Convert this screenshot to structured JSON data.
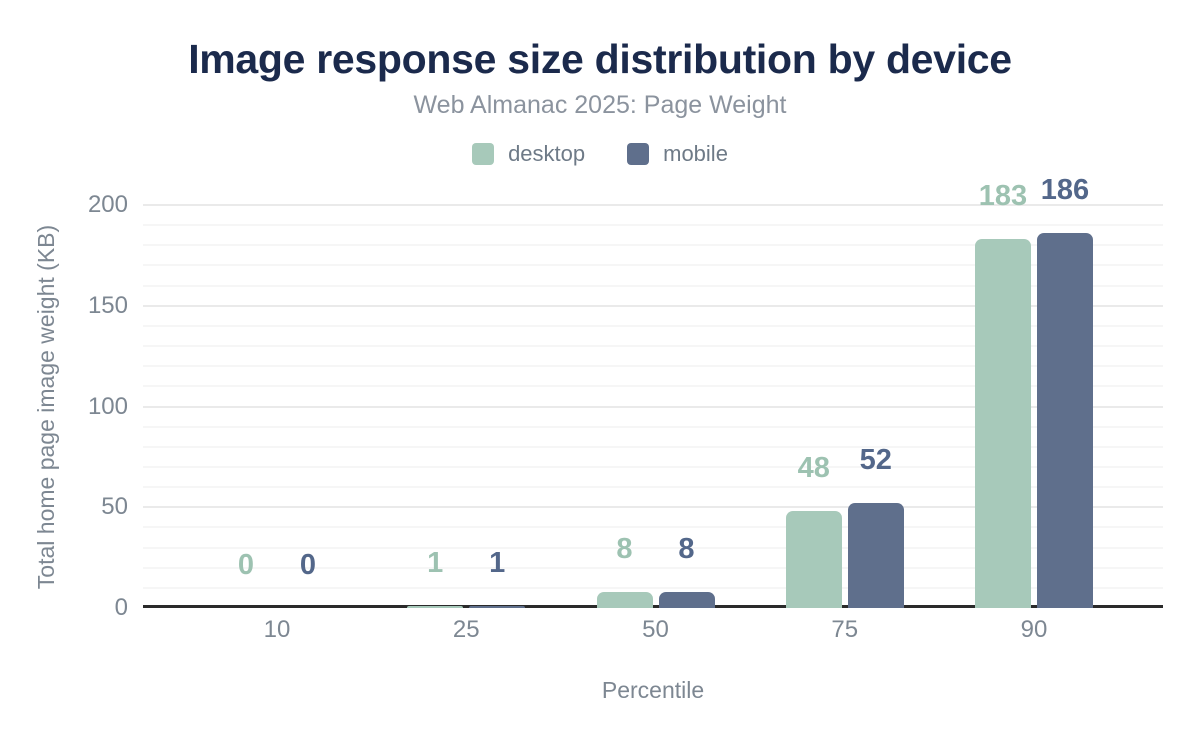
{
  "chart_data": {
    "type": "bar",
    "title": "Image response size distribution by device",
    "subtitle": "Web Almanac 2025: Page Weight",
    "xlabel": "Percentile",
    "ylabel": "Total home page image weight (KB)",
    "categories": [
      "10",
      "25",
      "50",
      "75",
      "90"
    ],
    "series": [
      {
        "name": "desktop",
        "values": [
          0,
          1,
          8,
          48,
          183
        ],
        "color": "#a7c9ba",
        "label_color": "#9dc2b1"
      },
      {
        "name": "mobile",
        "values": [
          0,
          1,
          8,
          52,
          186
        ],
        "color": "#5f6f8c",
        "label_color": "#53678a"
      }
    ],
    "ylim": [
      0,
      200
    ],
    "yticks": [
      0,
      50,
      100,
      150,
      200
    ],
    "grid": {
      "minor_step": 10,
      "major_step": 50,
      "visible": true
    },
    "legend_position": "top"
  },
  "colors": {
    "title": "#1b2a4c",
    "subtitle": "#8b939e",
    "axis_text": "#7d8792",
    "axis_line": "#2a2a2a",
    "gridline_major": "#eaeaea",
    "gridline_minor": "#f6f6f6",
    "background": "#ffffff"
  }
}
